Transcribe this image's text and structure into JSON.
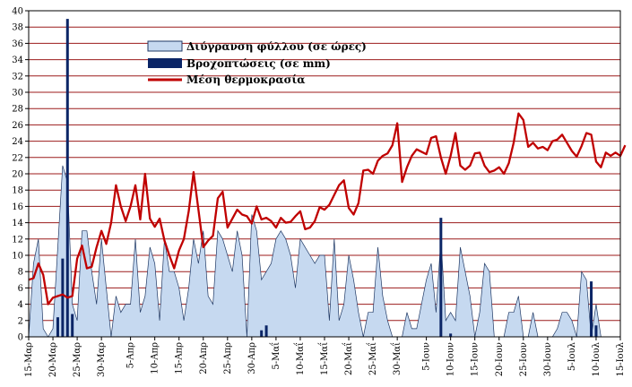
{
  "chart_data": {
    "type": "combo",
    "title": "",
    "xlabel": "",
    "ylabel": "",
    "ylim": [
      0,
      40
    ],
    "yticks": [
      0,
      2,
      4,
      6,
      8,
      10,
      12,
      14,
      16,
      18,
      20,
      22,
      24,
      26,
      28,
      30,
      32,
      34,
      36,
      38,
      40
    ],
    "grid": true,
    "legend_position": "top-center",
    "x_start_date": "15-Μαρ",
    "x_tick_labels": [
      "15-Μαρ",
      "20-Μαρ",
      "25-Μαρ",
      "30-Μαρ",
      "5-Απρ",
      "10-Απρ",
      "15-Απρ",
      "20-Απρ",
      "25-Απρ",
      "30-Απρ",
      "5-Μαΐ",
      "10-Μαΐ",
      "15-Μαΐ",
      "20-Μαΐ",
      "25-Μαΐ",
      "30-Μαΐ",
      "5-Ιουν",
      "10-Ιουν",
      "15-Ιουν",
      "20-Ιουν",
      "25-Ιουν",
      "30-Ιουν",
      "5-Ιουλ",
      "10-Ιουλ",
      "15-Ιουλ"
    ],
    "x_tick_days": [
      0,
      5,
      10,
      15,
      21,
      26,
      31,
      36,
      41,
      46,
      51,
      56,
      61,
      66,
      71,
      76,
      82,
      87,
      92,
      97,
      102,
      107,
      112,
      117,
      122
    ],
    "series": [
      {
        "name": "Διύγρανση φύλλου (σε ώρες)",
        "kind": "area",
        "color": "#c6d9f0",
        "edge_color": "#1f3864",
        "values": [
          0,
          9,
          12,
          1,
          0,
          1,
          11,
          21,
          19,
          4,
          2,
          13,
          13,
          8,
          4,
          12,
          6,
          0,
          5,
          3,
          4,
          4,
          12,
          3,
          5,
          11,
          9,
          2,
          12,
          8,
          8,
          6,
          2,
          6,
          12,
          9,
          13,
          5,
          4,
          13,
          12,
          10,
          8,
          13,
          10,
          0,
          15,
          13,
          7,
          8,
          9,
          12,
          13,
          12,
          10,
          6,
          12,
          11,
          10,
          9,
          10,
          10,
          2,
          12,
          2,
          4,
          10,
          7,
          3,
          0,
          3,
          3,
          11,
          5,
          2,
          0,
          0,
          0,
          3,
          1,
          1,
          4,
          7,
          9,
          3,
          12,
          2,
          3,
          2,
          11,
          8,
          5,
          0,
          3,
          9,
          8,
          0,
          0,
          0,
          3,
          3,
          5,
          0,
          0,
          3,
          0,
          0,
          0,
          0,
          1,
          3,
          3,
          2,
          0,
          8,
          7,
          0,
          4,
          0,
          0,
          0,
          0,
          0
        ]
      },
      {
        "name": "Βροχοπτώσεις (σε mm)",
        "kind": "bar",
        "color": "#0b2566",
        "points": [
          [
            6,
            2.4
          ],
          [
            7,
            9.6
          ],
          [
            8,
            39
          ],
          [
            9,
            2.8
          ],
          [
            48,
            0.8
          ],
          [
            49,
            1.4
          ],
          [
            85,
            14.6
          ],
          [
            87,
            0.4
          ],
          [
            116,
            6.8
          ],
          [
            117,
            1.4
          ]
        ]
      },
      {
        "name": "Μέση θερμοκρασία",
        "kind": "line",
        "color": "#c00000",
        "values": [
          7,
          7.2,
          9,
          7.6,
          4,
          4.8,
          5,
          5.2,
          4.8,
          5,
          9.6,
          11.2,
          8.4,
          8.6,
          11,
          13,
          11.4,
          14,
          18.6,
          16,
          14.2,
          16,
          18.6,
          14.4,
          20,
          14.5,
          13.5,
          14.5,
          11.8,
          10,
          8.4,
          10.6,
          12,
          15.4,
          20.2,
          15.6,
          11,
          11.8,
          12.4,
          17,
          17.8,
          13.4,
          14.5,
          15.6,
          15,
          14.8,
          13.9,
          16,
          14.4,
          14.6,
          14.2,
          13.4,
          14.6,
          14,
          14.1,
          14.8,
          15.4,
          13.2,
          13.4,
          14.2,
          15.9,
          15.6,
          16.2,
          17.4,
          18.6,
          19.2,
          15.8,
          15,
          16.4,
          20.4,
          20.5,
          20,
          21.6,
          22.2,
          22.5,
          23.5,
          26.2,
          19,
          20.8,
          22.2,
          23,
          22.7,
          22.4,
          24.4,
          24.6,
          22,
          20,
          22.2,
          25,
          21,
          20.5,
          21,
          22.5,
          22.6,
          21,
          20.2,
          20.4,
          20.8,
          20,
          21.3,
          23.8,
          27.4,
          26.6,
          23.3,
          23.8,
          23.1,
          23.3,
          22.9,
          24,
          24.2,
          24.8,
          23.8,
          22.8,
          22.1,
          23.4,
          25,
          24.8,
          21.5,
          20.8,
          22.6,
          22.2,
          22.6,
          22.2,
          23.5
        ]
      }
    ]
  }
}
